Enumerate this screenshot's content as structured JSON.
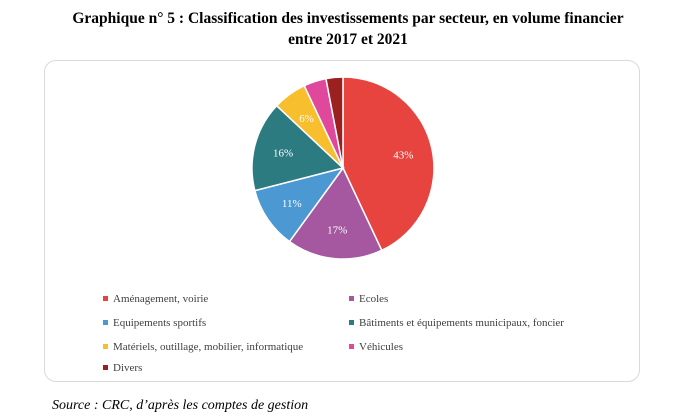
{
  "title": {
    "line1": "Graphique n° 5 :  Classification des investissements par secteur, en volume financier",
    "line2": "entre 2017 et 2021"
  },
  "chart_data": {
    "type": "pie",
    "title": "Classification des investissements par secteur, en volume financier entre 2017 et 2021",
    "slices": [
      {
        "label": "Aménagement, voirie",
        "value": 43,
        "display": "43%",
        "color": "#e8443f"
      },
      {
        "label": "Ecoles",
        "value": 17,
        "display": "17%",
        "color": "#a5579f"
      },
      {
        "label": "Equipements sportifs",
        "value": 11,
        "display": "11%",
        "color": "#4b98d3"
      },
      {
        "label": "Bâtiments et équipements municipaux, foncier",
        "value": 16,
        "display": "16%",
        "color": "#2b7b81"
      },
      {
        "label": "Matériels, outillage, mobilier, informatique",
        "value": 6,
        "display": "6%",
        "color": "#f7be2e"
      },
      {
        "label": "Véhicules",
        "value": 4,
        "display": "",
        "color": "#e0489b"
      },
      {
        "label": "Divers",
        "value": 3,
        "display": "",
        "color": "#9b2121"
      }
    ],
    "legend_position": "bottom"
  },
  "source": "Source : CRC, d’après les comptes de gestion"
}
